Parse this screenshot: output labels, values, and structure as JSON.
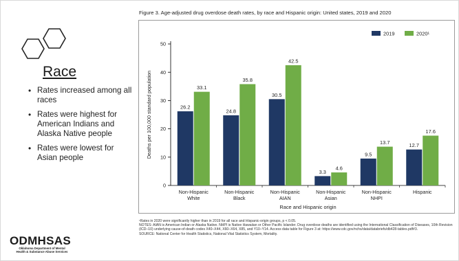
{
  "left_panel": {
    "heading": "Race",
    "bullets": [
      "Rates increased among all races",
      "Rates were highest for American Indians and Alaska Native people",
      "Rates were lowest for Asian people"
    ]
  },
  "logo": {
    "name": "ODMHSAS",
    "line1": "Oklahoma Department of Mental",
    "line2": "Health & Substance Abuse Services"
  },
  "figure_title": "Figure 3. Age-adjusted drug overdose death rates, by race and Hispanic origin: United states, 2019 and 2020",
  "footnotes": [
    "¹Rates in 2020 were significantly higher than in 2019 for all race and Hispanic-origin groups, p < 0.05.",
    "NOTES: AIAN is American Indian or Alaska Native. NHPI is Native Hawaiian or Other Pacific Islander. Drug overdose deaths are identified using the International Classification of Diseases, 10th Revision (ICD–10) underlying cause-of-death codes X40–X44, X60–X64, X85, and Y10–Y14. Access data table for Figure 3 at: https://www.cdc.gov/nchs/data/databriefs/db428-tables.pdf#3.",
    "SOURCE: National Center for Health Statistics, National Vital Statistics System, Mortality."
  ],
  "colors": {
    "series_2019": "#1f3864",
    "series_2020": "#70ad47"
  },
  "chart_data": {
    "type": "bar",
    "title": "Figure 3. Age-adjusted drug overdose death rates, by race and Hispanic origin: United states, 2019 and 2020",
    "xlabel": "Race and Hispanic origin",
    "ylabel": "Deaths per 100,000 standard population",
    "ylim": [
      0,
      50
    ],
    "yticks": [
      0,
      10,
      20,
      30,
      40,
      50
    ],
    "grid": false,
    "legend_position": "top-right",
    "categories": [
      [
        "Non-Hispanic",
        "White"
      ],
      [
        "Non-Hispanic",
        "Black"
      ],
      [
        "Non-Hispanic",
        "AIAN"
      ],
      [
        "Non-Hispanic",
        "Asian"
      ],
      [
        "Non-Hispanic",
        "NHPI"
      ],
      [
        "Hispanic"
      ]
    ],
    "series": [
      {
        "name": "2019",
        "legend_label": "2019",
        "values": [
          26.2,
          24.8,
          30.5,
          3.3,
          9.5,
          12.7
        ],
        "labels": [
          "26.2",
          "24.8",
          "30.5",
          "3.3",
          "9.5",
          "12.7"
        ]
      },
      {
        "name": "2020",
        "legend_label": "2020¹",
        "values": [
          33.1,
          35.8,
          42.5,
          4.6,
          13.7,
          17.6
        ],
        "labels": [
          "33.1",
          "35.8",
          "42.5",
          "4.6",
          "13.7",
          "17.6"
        ]
      }
    ]
  }
}
